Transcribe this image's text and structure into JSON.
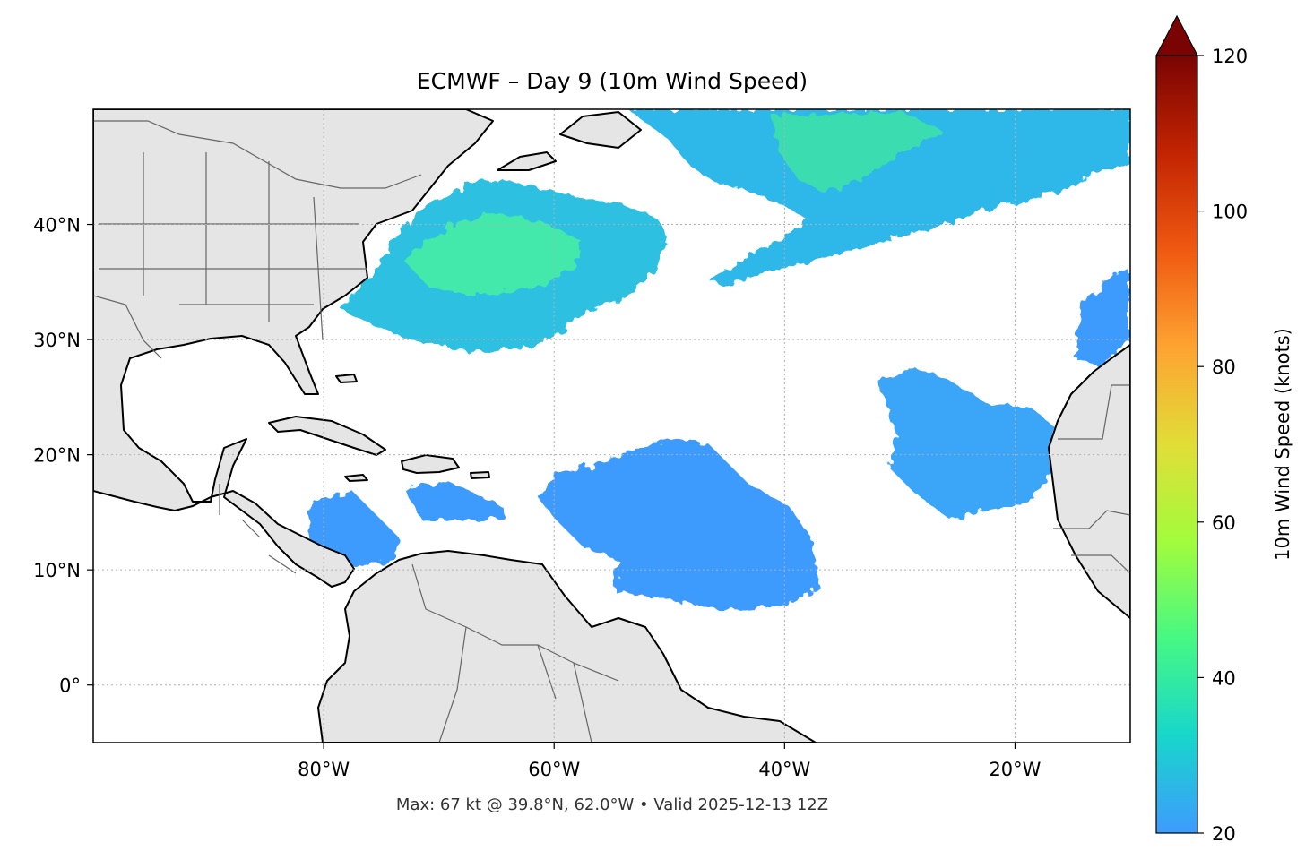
{
  "title": "ECMWF – Day 9 (10m Wind Speed)",
  "footer": "Max: 67 kt @ 39.8°N, 62.0°W • Valid 2025-12-13 12Z",
  "map": {
    "lon_range": [
      -100,
      -10
    ],
    "lat_range": [
      -5,
      50
    ],
    "lon_ticks": [
      {
        "value": -80,
        "label": "80°W"
      },
      {
        "value": -60,
        "label": "60°W"
      },
      {
        "value": -40,
        "label": "40°W"
      },
      {
        "value": -20,
        "label": "20°W"
      }
    ],
    "lat_ticks": [
      {
        "value": 40,
        "label": "40°N"
      },
      {
        "value": 30,
        "label": "30°N"
      },
      {
        "value": 20,
        "label": "20°N"
      },
      {
        "value": 10,
        "label": "10°N"
      },
      {
        "value": 0,
        "label": "0°"
      }
    ],
    "gridlines": true,
    "land_color": "#e5e5e5",
    "coast_color": "#000000",
    "border_color": "#666666"
  },
  "colorbar": {
    "label": "10m Wind Speed (knots)",
    "min": 20,
    "max": 120,
    "extend": "max",
    "extend_color": "#7a0403",
    "ticks": [
      {
        "value": 20,
        "label": "20"
      },
      {
        "value": 40,
        "label": "40"
      },
      {
        "value": 60,
        "label": "60"
      },
      {
        "value": 80,
        "label": "80"
      },
      {
        "value": 100,
        "label": "100"
      },
      {
        "value": 120,
        "label": "120"
      }
    ],
    "colormap": [
      "#3e9bfe",
      "#18d6cb",
      "#46f884",
      "#a2fc3c",
      "#e1dd37",
      "#fea331",
      "#ef5911",
      "#c22402",
      "#7a0403"
    ]
  }
}
